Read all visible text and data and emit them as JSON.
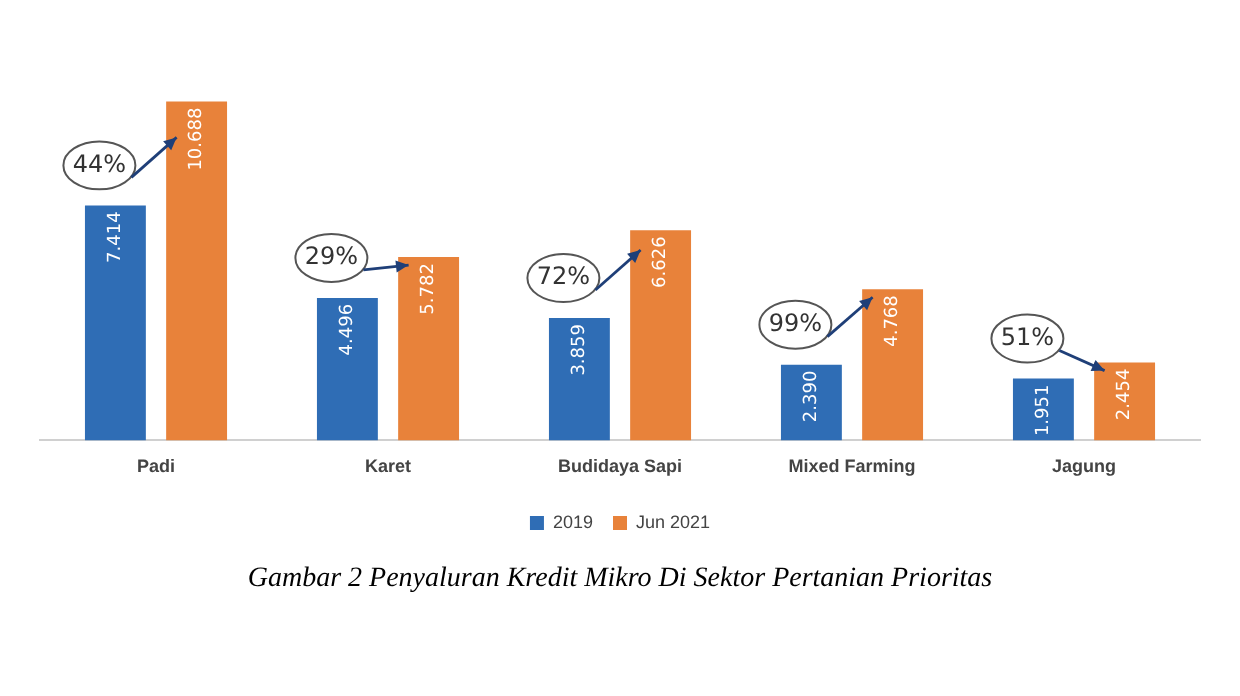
{
  "chart_data": {
    "type": "bar",
    "categories": [
      "Padi",
      "Karet",
      "Budidaya Sapi",
      "Mixed Farming",
      "Jagung"
    ],
    "series": [
      {
        "name": "2019",
        "color": "#2f6db5",
        "values": [
          7414,
          4496,
          3859,
          2390,
          1951
        ],
        "value_labels": [
          "7.414",
          "4.496",
          "3.859",
          "2.390",
          "1.951"
        ]
      },
      {
        "name": "Jun 2021",
        "color": "#e8823a",
        "values": [
          10688,
          5782,
          6626,
          4768,
          2454
        ],
        "value_labels": [
          "10.688",
          "5.782",
          "6.626",
          "4.768",
          "2.454"
        ]
      }
    ],
    "annotations": [
      "44%",
      "29%",
      "72%",
      "99%",
      "51%",
      "Gambar 2 Penyaluran Kredit Mikro Di Sektor Pertanian Prioritas"
    ],
    "legend": "bottom"
  }
}
